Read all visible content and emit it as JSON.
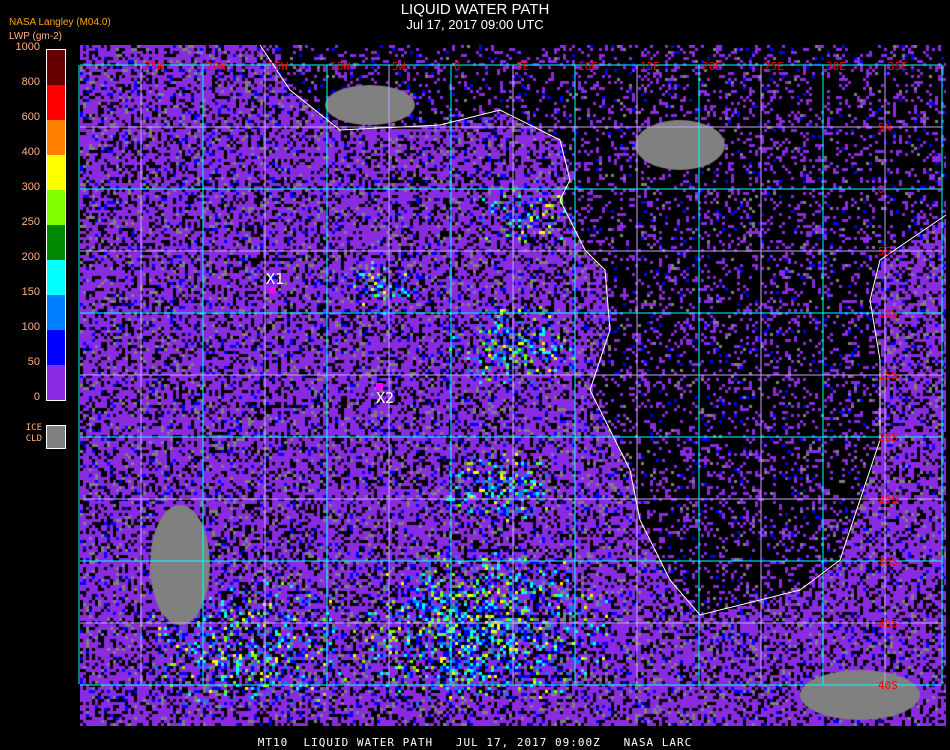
{
  "header": {
    "title": "LIQUID WATER PATH",
    "subtitle": "Jul 17, 2017 09:00 UTC",
    "source": "NASA Langley (M04.0)"
  },
  "legend": {
    "units": "LWP (gm-2)",
    "ticks": [
      "0",
      "50",
      "100",
      "150",
      "200",
      "250",
      "300",
      "400",
      "600",
      "800",
      "1000"
    ],
    "colors": [
      "#8a2be2",
      "#0000ff",
      "#0080ff",
      "#00ffff",
      "#008800",
      "#80ff00",
      "#ffff00",
      "#ff8000",
      "#ff0000",
      "#660000"
    ],
    "ice_label": "ICE CLD",
    "ice_color": "#808080"
  },
  "map": {
    "longitude_labels": [
      "25W",
      "20W",
      "15W",
      "10W",
      "5W",
      "0",
      "5E",
      "10E",
      "15E",
      "20E",
      "25E",
      "30E",
      "35E"
    ],
    "latitude_labels": [
      "5N",
      "0",
      "5S",
      "10S",
      "15S",
      "20S",
      "25S",
      "30S",
      "35S",
      "40S"
    ],
    "grid_color": "#00ffff",
    "label_color": "#ff0000",
    "coastline_color": "#ffffff",
    "markers": [
      {
        "label": "X1",
        "color": "#ff00ff"
      },
      {
        "label": "X2",
        "color": "#ff00ff"
      }
    ]
  },
  "footer": {
    "caption": "MT10  LIQUID WATER PATH   JUL 17, 2017 09:00Z   NASA LARC"
  }
}
